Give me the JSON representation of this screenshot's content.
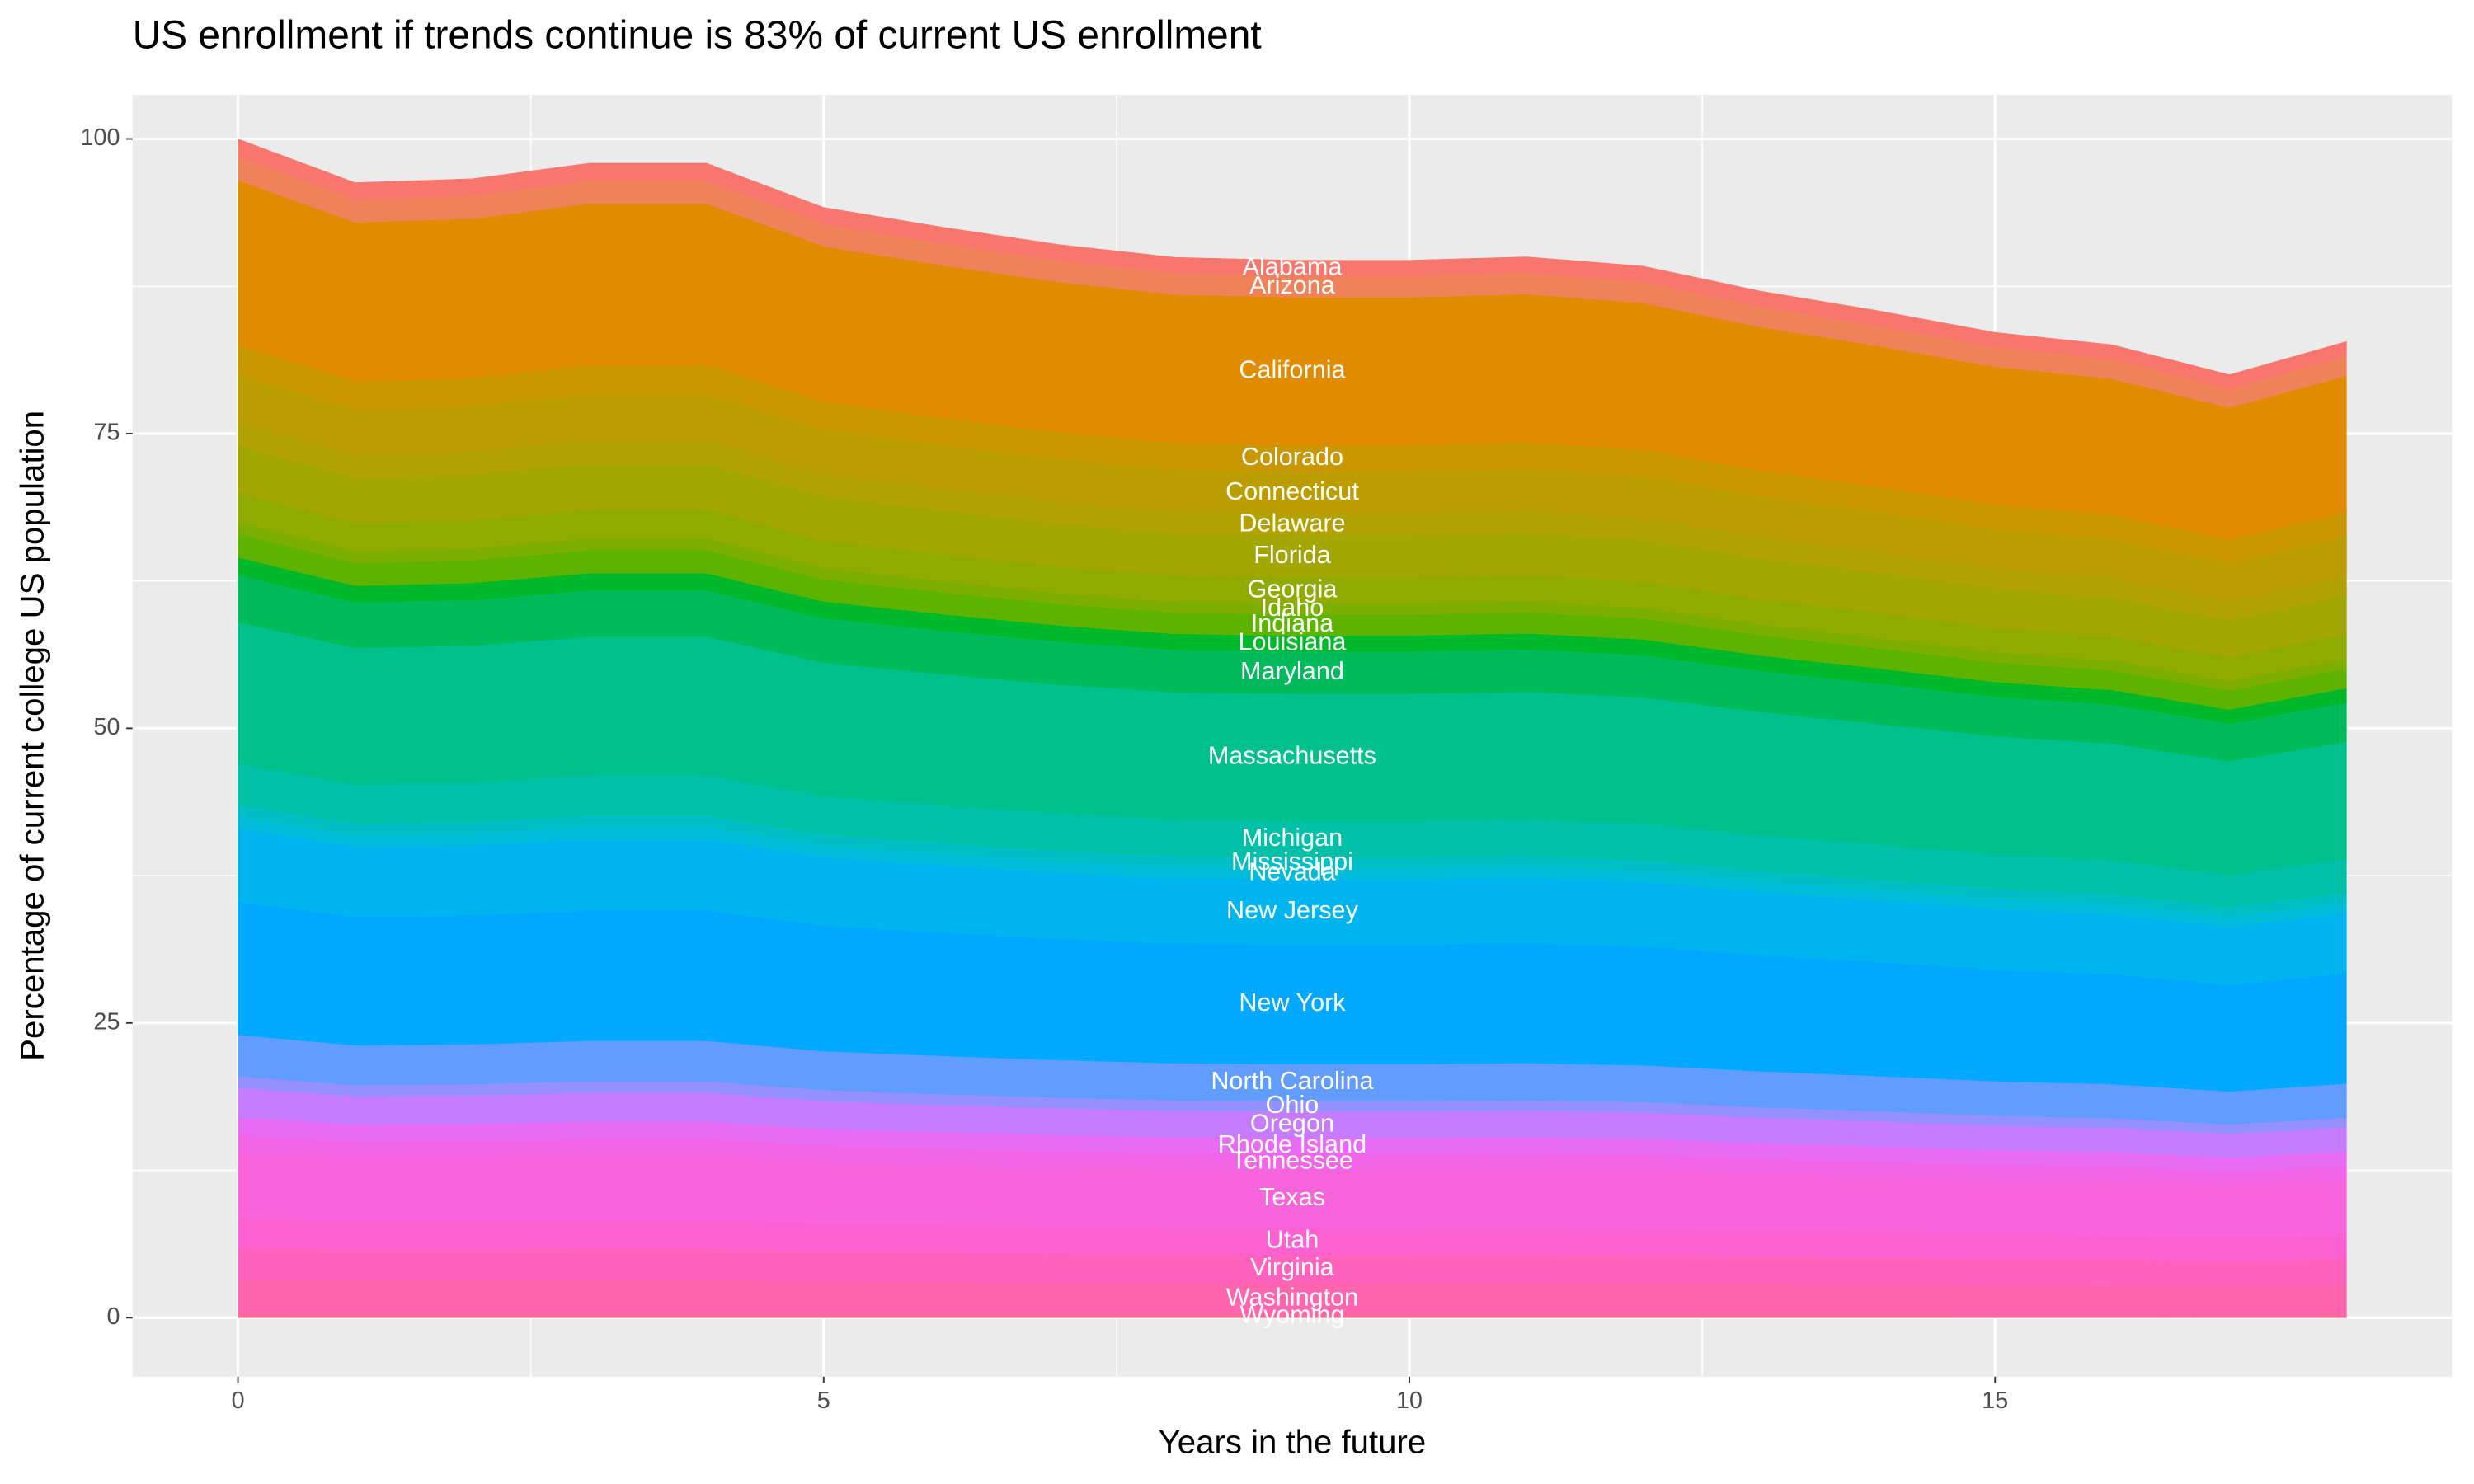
{
  "chart_data": {
    "type": "stacked-area",
    "title": "US enrollment if trends continue is 83% of current US enrollment",
    "x_label": "Years in the future",
    "y_label": "Percentage of current college US population",
    "x": [
      0,
      1,
      2,
      3,
      4,
      5,
      6,
      7,
      8,
      9,
      10,
      11,
      12,
      13,
      14,
      15,
      16,
      17,
      18
    ],
    "xlim": [
      -0.9,
      18.9
    ],
    "ylim": [
      -5,
      103.75
    ],
    "xticks": [
      0,
      5,
      10,
      15
    ],
    "yticks": [
      0,
      25,
      50,
      75,
      100
    ],
    "grid": true,
    "series": [
      {
        "name": "Alabama",
        "color": "#f8766d",
        "values": [
          1.5,
          1.44,
          1.45,
          1.47,
          1.47,
          1.41,
          1.39,
          1.37,
          1.35,
          1.35,
          1.35,
          1.35,
          1.34,
          1.31,
          1.28,
          1.25,
          1.24,
          1.2,
          1.24
        ]
      },
      {
        "name": "Arizona",
        "color": "#f0825a",
        "values": [
          2,
          1.93,
          1.93,
          1.96,
          1.96,
          1.88,
          1.85,
          1.82,
          1.8,
          1.79,
          1.79,
          1.8,
          1.78,
          1.74,
          1.71,
          1.67,
          1.65,
          1.6,
          1.66
        ]
      },
      {
        "name": "California",
        "color": "#e08b00",
        "values": [
          14,
          13.48,
          13.52,
          13.71,
          13.71,
          13.19,
          12.95,
          12.74,
          12.59,
          12.56,
          12.56,
          12.6,
          12.49,
          12.19,
          11.96,
          11.7,
          11.55,
          11.2,
          11.59
        ]
      },
      {
        "name": "Colorado",
        "color": "#c99700",
        "values": [
          2.5,
          2.41,
          2.42,
          2.45,
          2.45,
          2.36,
          2.31,
          2.28,
          2.25,
          2.24,
          2.24,
          2.25,
          2.23,
          2.18,
          2.14,
          2.09,
          2.06,
          2,
          2.07
        ]
      },
      {
        "name": "Connecticut",
        "color": "#bb9d00",
        "values": [
          4,
          3.85,
          3.86,
          3.92,
          3.92,
          3.77,
          3.7,
          3.64,
          3.6,
          3.59,
          3.59,
          3.6,
          3.57,
          3.48,
          3.42,
          3.34,
          3.3,
          3.2,
          3.31
        ]
      },
      {
        "name": "Delaware",
        "color": "#b1a200",
        "values": [
          2,
          1.93,
          1.93,
          1.96,
          1.96,
          1.88,
          1.85,
          1.82,
          1.8,
          1.79,
          1.79,
          1.8,
          1.78,
          1.74,
          1.71,
          1.67,
          1.65,
          1.6,
          1.66
        ]
      },
      {
        "name": "Florida",
        "color": "#a3a500",
        "values": [
          4,
          3.85,
          3.86,
          3.92,
          3.92,
          3.77,
          3.7,
          3.64,
          3.6,
          3.59,
          3.59,
          3.6,
          3.57,
          3.48,
          3.42,
          3.34,
          3.3,
          3.2,
          3.31
        ]
      },
      {
        "name": "Georgia",
        "color": "#8fab00",
        "values": [
          2.5,
          2.41,
          2.42,
          2.45,
          2.45,
          2.36,
          2.31,
          2.28,
          2.25,
          2.24,
          2.24,
          2.25,
          2.23,
          2.18,
          2.14,
          2.09,
          2.06,
          2,
          2.07
        ]
      },
      {
        "name": "Idaho",
        "color": "#7cae00",
        "values": [
          1,
          0.96,
          0.97,
          0.98,
          0.98,
          0.94,
          0.93,
          0.91,
          0.9,
          0.9,
          0.9,
          0.9,
          0.89,
          0.87,
          0.85,
          0.84,
          0.83,
          0.8,
          0.83
        ]
      },
      {
        "name": "Indiana",
        "color": "#5eb300",
        "values": [
          2,
          1.93,
          1.93,
          1.96,
          1.96,
          1.88,
          1.85,
          1.82,
          1.8,
          1.79,
          1.79,
          1.8,
          1.78,
          1.74,
          1.71,
          1.67,
          1.65,
          1.6,
          1.66
        ]
      },
      {
        "name": "Louisiana",
        "color": "#00b92a",
        "values": [
          1.5,
          1.44,
          1.45,
          1.47,
          1.47,
          1.41,
          1.39,
          1.37,
          1.35,
          1.35,
          1.35,
          1.35,
          1.34,
          1.31,
          1.28,
          1.25,
          1.24,
          1.2,
          1.24
        ]
      },
      {
        "name": "Maryland",
        "color": "#00bb5c",
        "values": [
          4,
          3.85,
          3.86,
          3.92,
          3.92,
          3.77,
          3.7,
          3.64,
          3.6,
          3.59,
          3.59,
          3.6,
          3.57,
          3.48,
          3.42,
          3.34,
          3.3,
          3.2,
          3.31
        ]
      },
      {
        "name": "Massachusetts",
        "color": "#00c08b",
        "values": [
          12,
          11.56,
          11.59,
          11.75,
          11.75,
          11.3,
          11.1,
          10.92,
          10.79,
          10.76,
          10.76,
          10.8,
          10.7,
          10.45,
          10.25,
          10.03,
          9.9,
          9.6,
          9.94
        ]
      },
      {
        "name": "Michigan",
        "color": "#00c1a7",
        "values": [
          3.5,
          3.37,
          3.38,
          3.43,
          3.43,
          3.3,
          3.24,
          3.19,
          3.15,
          3.14,
          3.14,
          3.15,
          3.12,
          3.05,
          2.99,
          2.93,
          2.89,
          2.8,
          2.9
        ]
      },
      {
        "name": "Mississippi",
        "color": "#00bfc4",
        "values": [
          1,
          0.96,
          0.97,
          0.98,
          0.98,
          0.94,
          0.93,
          0.91,
          0.9,
          0.9,
          0.9,
          0.9,
          0.89,
          0.87,
          0.85,
          0.84,
          0.83,
          0.8,
          0.83
        ]
      },
      {
        "name": "Nevada",
        "color": "#00bcd8",
        "values": [
          1,
          0.96,
          0.97,
          0.98,
          0.98,
          0.94,
          0.93,
          0.91,
          0.9,
          0.9,
          0.9,
          0.9,
          0.89,
          0.87,
          0.85,
          0.84,
          0.83,
          0.8,
          0.83
        ]
      },
      {
        "name": "New Jersey",
        "color": "#00b4ef",
        "values": [
          6.2,
          5.97,
          5.99,
          6.07,
          6.07,
          5.84,
          5.74,
          5.64,
          5.57,
          5.56,
          5.56,
          5.58,
          5.53,
          5.4,
          5.29,
          5.18,
          5.12,
          4.96,
          5.13
        ]
      },
      {
        "name": "New York",
        "color": "#00a9ff",
        "values": [
          11.3,
          10.88,
          10.92,
          11.06,
          11.06,
          10.64,
          10.45,
          10.28,
          10.16,
          10.14,
          10.14,
          10.17,
          10.08,
          9.84,
          9.65,
          9.45,
          9.32,
          9.04,
          9.36
        ]
      },
      {
        "name": "North Carolina",
        "color": "#619cff",
        "values": [
          3.5,
          3.37,
          3.38,
          3.43,
          3.43,
          3.3,
          3.24,
          3.19,
          3.15,
          3.14,
          3.14,
          3.15,
          3.12,
          3.05,
          2.99,
          2.93,
          2.89,
          2.8,
          2.9
        ]
      },
      {
        "name": "Ohio",
        "color": "#9590ff",
        "values": [
          1,
          0.96,
          0.97,
          0.98,
          0.98,
          0.94,
          0.93,
          0.91,
          0.9,
          0.9,
          0.9,
          0.9,
          0.89,
          0.87,
          0.85,
          0.84,
          0.83,
          0.8,
          0.83
        ]
      },
      {
        "name": "Oregon",
        "color": "#c77cff",
        "values": [
          2.5,
          2.41,
          2.42,
          2.45,
          2.45,
          2.36,
          2.31,
          2.28,
          2.25,
          2.24,
          2.24,
          2.25,
          2.23,
          2.18,
          2.14,
          2.09,
          2.06,
          2,
          2.07
        ]
      },
      {
        "name": "Rhode Island",
        "color": "#e76bf3",
        "values": [
          1.5,
          1.44,
          1.45,
          1.47,
          1.47,
          1.41,
          1.39,
          1.37,
          1.35,
          1.35,
          1.35,
          1.35,
          1.34,
          1.31,
          1.28,
          1.25,
          1.24,
          1.2,
          1.24
        ]
      },
      {
        "name": "Tennessee",
        "color": "#f265e7",
        "values": [
          1.5,
          1.44,
          1.45,
          1.47,
          1.47,
          1.41,
          1.39,
          1.37,
          1.35,
          1.35,
          1.35,
          1.35,
          1.34,
          1.31,
          1.28,
          1.25,
          1.24,
          1.2,
          1.24
        ]
      },
      {
        "name": "Texas",
        "color": "#f864dc",
        "values": [
          5.5,
          5.3,
          5.31,
          5.38,
          5.38,
          5.18,
          5.09,
          5.01,
          4.94,
          4.93,
          4.93,
          4.95,
          4.91,
          4.79,
          4.7,
          4.6,
          4.54,
          4.4,
          4.55
        ]
      },
      {
        "name": "Utah",
        "color": "#fd61d1",
        "values": [
          2.5,
          2.41,
          2.42,
          2.45,
          2.45,
          2.36,
          2.31,
          2.28,
          2.25,
          2.24,
          2.24,
          2.25,
          2.23,
          2.18,
          2.14,
          2.09,
          2.06,
          2,
          2.07
        ]
      },
      {
        "name": "Virginia",
        "color": "#ff62bc",
        "values": [
          2.7,
          2.6,
          2.61,
          2.64,
          2.64,
          2.54,
          2.5,
          2.46,
          2.43,
          2.42,
          2.42,
          2.43,
          2.41,
          2.35,
          2.31,
          2.26,
          2.23,
          2.16,
          2.24
        ]
      },
      {
        "name": "Washington",
        "color": "#ff65ae",
        "values": [
          3,
          2.89,
          2.9,
          2.94,
          2.94,
          2.83,
          2.78,
          2.73,
          2.7,
          2.69,
          2.69,
          2.7,
          2.68,
          2.61,
          2.56,
          2.51,
          2.48,
          2.4,
          2.48
        ]
      },
      {
        "name": "Wyoming",
        "color": "#ff6c91",
        "values": [
          0.3,
          0.29,
          0.29,
          0.29,
          0.29,
          0.28,
          0.28,
          0.27,
          0.27,
          0.27,
          0.27,
          0.27,
          0.27,
          0.26,
          0.26,
          0.25,
          0.25,
          0.24,
          0.25
        ]
      }
    ]
  }
}
